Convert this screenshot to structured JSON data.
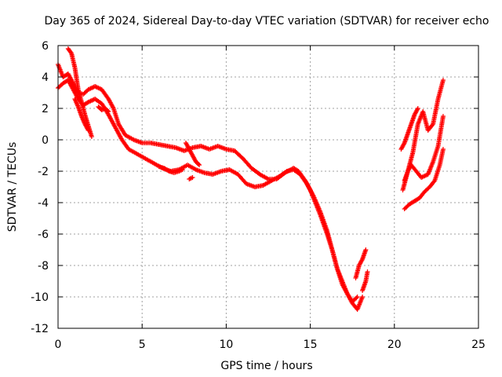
{
  "chart_data": {
    "type": "scatter",
    "title": "Day 365 of 2024, Sidereal Day-to-day VTEC variation (SDTVAR) for receiver echo",
    "xlabel": "GPS time / hours",
    "ylabel": "SDTVAR / TECUs",
    "xlim": [
      0,
      25
    ],
    "ylim": [
      -12,
      6
    ],
    "xticks": [
      0,
      5,
      10,
      15,
      20,
      25
    ],
    "yticks": [
      -12,
      -10,
      -8,
      -6,
      -4,
      -2,
      0,
      2,
      4,
      6
    ],
    "grid": true,
    "marker": "+",
    "series": [
      {
        "name": "SDTVAR",
        "color": "#ff0000",
        "tracks": [
          {
            "x": [
              0.0,
              0.3,
              0.6,
              0.9,
              1.2,
              1.5,
              1.8,
              2.2,
              2.6,
              3.0,
              3.3,
              3.6,
              4.0,
              4.5,
              5.0,
              5.5,
              6.0,
              6.5,
              7.0,
              7.5,
              8.0,
              8.5,
              9.0,
              9.5,
              10.0,
              10.5,
              11.0,
              11.5,
              12.0,
              12.5,
              13.0,
              13.5,
              14.0,
              14.3,
              14.7,
              15.0,
              15.3,
              15.6,
              16.0,
              16.3,
              16.6,
              16.9,
              17.2,
              17.5,
              17.8
            ],
            "y": [
              4.8,
              4.0,
              4.2,
              3.6,
              3.0,
              2.9,
              3.2,
              3.4,
              3.2,
              2.6,
              2.0,
              1.0,
              0.3,
              0.0,
              -0.2,
              -0.2,
              -0.3,
              -0.4,
              -0.5,
              -0.7,
              -0.5,
              -0.4,
              -0.6,
              -0.4,
              -0.6,
              -0.7,
              -1.2,
              -1.8,
              -2.2,
              -2.5,
              -2.5,
              -2.1,
              -1.8,
              -2.0,
              -2.6,
              -3.2,
              -4.0,
              -4.8,
              -6.0,
              -7.0,
              -8.2,
              -9.2,
              -9.8,
              -10.3,
              -10.0
            ]
          },
          {
            "x": [
              0.0,
              0.3,
              0.6,
              0.9,
              1.2,
              1.5,
              1.8,
              2.2,
              2.6,
              3.0,
              3.4,
              3.8,
              4.2,
              4.7,
              5.2,
              5.7,
              6.2,
              6.7,
              7.2,
              7.7,
              8.2,
              8.7,
              9.2,
              9.7,
              10.2,
              10.7,
              11.2,
              11.7,
              12.2,
              12.7,
              13.2,
              13.6,
              14.0,
              14.4,
              14.8,
              15.2,
              15.6,
              16.0,
              16.3,
              16.6,
              16.9,
              17.2,
              17.5,
              17.8,
              18.1
            ],
            "y": [
              3.3,
              3.6,
              3.8,
              3.2,
              2.6,
              2.2,
              2.4,
              2.6,
              2.3,
              1.6,
              0.8,
              0.0,
              -0.6,
              -0.9,
              -1.2,
              -1.5,
              -1.8,
              -2.0,
              -1.9,
              -1.6,
              -1.9,
              -2.1,
              -2.2,
              -2.0,
              -1.9,
              -2.2,
              -2.8,
              -3.0,
              -2.9,
              -2.6,
              -2.3,
              -2.0,
              -1.9,
              -2.2,
              -2.8,
              -3.6,
              -4.6,
              -5.8,
              -7.0,
              -8.2,
              -9.0,
              -9.8,
              -10.4,
              -10.8,
              -10.0
            ]
          },
          {
            "x": [
              0.6,
              0.8,
              1.0,
              1.2,
              1.4,
              1.6,
              1.8,
              2.0
            ],
            "y": [
              5.8,
              5.5,
              4.6,
              3.2,
              2.4,
              1.6,
              0.9,
              0.2
            ]
          },
          {
            "x": [
              1.0,
              1.2,
              1.4,
              1.6,
              1.8
            ],
            "y": [
              2.6,
              2.1,
              1.5,
              1.0,
              0.6
            ]
          },
          {
            "x": [
              2.4,
              2.6,
              2.8,
              3.0
            ],
            "y": [
              2.1,
              1.9,
              2.0,
              1.8
            ]
          },
          {
            "x": [
              7.6,
              7.8,
              8.0,
              8.2,
              8.4
            ],
            "y": [
              -0.2,
              -0.6,
              -1.0,
              -1.4,
              -1.6
            ]
          },
          {
            "x": [
              6.0,
              6.3,
              6.6,
              6.9,
              7.2,
              7.4
            ],
            "y": [
              -1.7,
              -1.8,
              -2.0,
              -2.1,
              -2.0,
              -1.9
            ]
          },
          {
            "x": [
              7.8,
              8.0
            ],
            "y": [
              -2.5,
              -2.4
            ]
          },
          {
            "x": [
              17.7,
              17.9,
              18.1,
              18.3
            ],
            "y": [
              -8.8,
              -8.0,
              -7.6,
              -7.0
            ]
          },
          {
            "x": [
              18.1,
              18.3,
              18.4
            ],
            "y": [
              -9.6,
              -9.0,
              -8.4
            ]
          },
          {
            "x": [
              20.4,
              20.6,
              20.8,
              21.0,
              21.2,
              21.4
            ],
            "y": [
              -0.6,
              -0.2,
              0.4,
              1.0,
              1.6,
              2.0
            ]
          },
          {
            "x": [
              20.5,
              20.7,
              20.9,
              21.1,
              21.4,
              21.7,
              22.0,
              22.3,
              22.6,
              22.9
            ],
            "y": [
              -3.2,
              -2.4,
              -1.6,
              -0.8,
              1.0,
              1.8,
              0.6,
              1.0,
              2.6,
              3.8
            ]
          },
          {
            "x": [
              20.6,
              20.8,
              21.0,
              21.3,
              21.6,
              22.0,
              22.3,
              22.6,
              22.9
            ],
            "y": [
              -2.6,
              -2.0,
              -1.6,
              -2.0,
              -2.4,
              -2.2,
              -1.4,
              -0.4,
              1.5
            ]
          },
          {
            "x": [
              20.6,
              20.9,
              21.2,
              21.5,
              21.8,
              22.1,
              22.4,
              22.7,
              22.9
            ],
            "y": [
              -4.4,
              -4.1,
              -3.9,
              -3.7,
              -3.3,
              -3.0,
              -2.6,
              -1.6,
              -0.6
            ]
          }
        ]
      }
    ]
  }
}
